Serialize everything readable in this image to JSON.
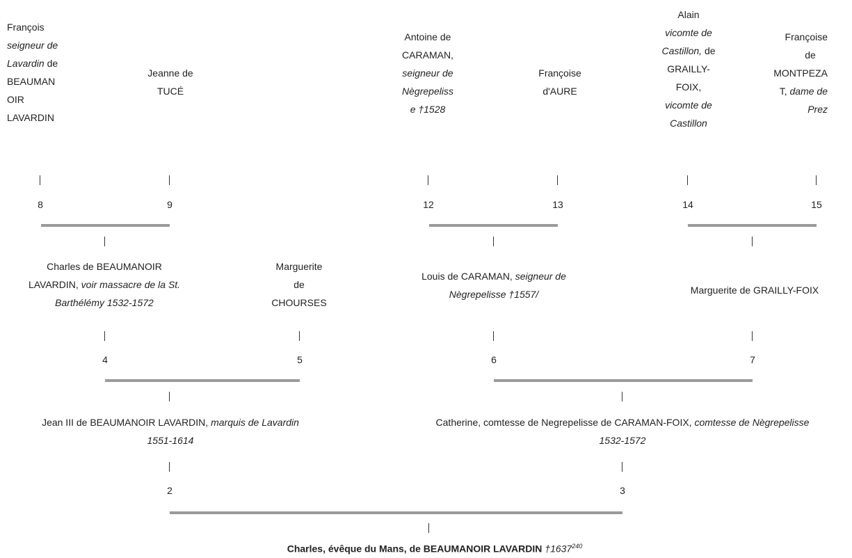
{
  "persons": {
    "p8": {
      "l1": "François",
      "l2": "seigneur de",
      "l3a": "Lavardin",
      "l3b": " de",
      "l4": "BEAUMAN",
      "l5": "OIR",
      "l6": "LAVARDIN",
      "num": "8"
    },
    "p9": {
      "l1": "Jeanne de",
      "l2": "TUCÉ",
      "num": "9"
    },
    "p12": {
      "l1": "Antoine de",
      "l2": "CARAMAN,",
      "l3": "seigneur de",
      "l4": "Nègrepeliss",
      "l5": "e †1528",
      "num": "12"
    },
    "p13": {
      "l1": "Françoise",
      "l2": "d'AURE",
      "num": "13"
    },
    "p14": {
      "l1": "Alain",
      "l2": "vicomte de",
      "l3a": "Castillon,",
      "l3b": " de",
      "l4": "GRAILLY-",
      "l5": "FOIX,",
      "l6": "vicomte de",
      "l7": "Castillon",
      "num": "14"
    },
    "p15": {
      "l1": "Françoise",
      "l2": "de",
      "l3": "MONTPEZA",
      "l4a": "T, ",
      "l4b": "dame de",
      "l5": "Prez",
      "num": "15"
    },
    "p4": {
      "l1": "Charles de BEAUMANOIR",
      "l2a": "LAVARDIN, ",
      "l2b": "voir massacre de la St.",
      "l3": "Barthélémy 1532-1572",
      "num": "4"
    },
    "p5": {
      "l1": "Marguerite",
      "l2": "de",
      "l3": "CHOURSES",
      "num": "5"
    },
    "p6": {
      "l1a": "Louis de CARAMAN, ",
      "l1b": "seigneur de",
      "l2": "Nègrepelisse †1557/",
      "num": "6"
    },
    "p7": {
      "l1": "Marguerite  de GRAILLY-FOIX",
      "num": "7"
    },
    "p2": {
      "l1a": "Jean III de BEAUMANOIR LAVARDIN, ",
      "l1b": "marquis de Lavardin",
      "l2": "1551-1614",
      "num": "2"
    },
    "p3": {
      "l1a": "Catherine, comtesse de Negrepelisse de CARAMAN-FOIX, ",
      "l1b": "comtesse de Nègrepelisse",
      "l2": "1532-1572",
      "num": "3"
    },
    "p1": {
      "l1a": "Charles, évêque du Mans,  de BEAUMANOIR LAVARDIN ",
      "l1b": "†1637",
      "sup": "240"
    }
  }
}
